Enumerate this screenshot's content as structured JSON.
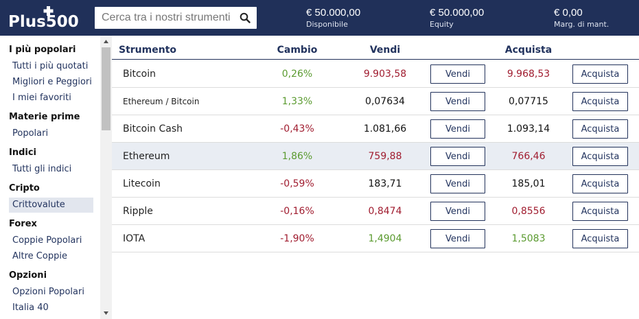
{
  "header": {
    "logo_text": "Plus500",
    "search_placeholder": "Cerca tra i nostri strumenti",
    "stats": [
      {
        "value": "€ 50.000,00",
        "label": "Disponibile"
      },
      {
        "value": "€ 50.000,00",
        "label": "Equity"
      },
      {
        "value": "€ 0,00",
        "label": "Marg. di mant."
      }
    ],
    "brand_color": "#203059"
  },
  "sidebar": {
    "sections": [
      {
        "title": "I più popolari",
        "items": [
          "Tutti i più quotati",
          "Migliori e Peggiori",
          "I miei favoriti"
        ]
      },
      {
        "title": "Materie prime",
        "items": [
          "Popolari"
        ]
      },
      {
        "title": "Indici",
        "items": [
          "Tutti gli indici"
        ]
      },
      {
        "title": "Cripto",
        "items": [
          "Crittovalute"
        ]
      },
      {
        "title": "Forex",
        "items": [
          "Coppie Popolari",
          "Altre Coppie"
        ]
      },
      {
        "title": "Opzioni",
        "items": [
          "Opzioni Popolari",
          "Italia 40"
        ]
      }
    ],
    "active_item": "Crittovalute"
  },
  "table": {
    "headers": {
      "instrument": "Strumento",
      "change": "Cambio",
      "sell": "Vendi",
      "buy": "Acquista"
    },
    "sell_button_label": "Vendi",
    "buy_button_label": "Acquista",
    "rows": [
      {
        "name": "Bitcoin",
        "change": "0,26%",
        "sell": "9.903,58",
        "buy": "9.968,53",
        "change_dir": "pos",
        "sell_dir": "neg",
        "buy_dir": "neg"
      },
      {
        "name": "Ethereum / Bitcoin",
        "change": "1,33%",
        "sell": "0,07634",
        "buy": "0,07715",
        "change_dir": "pos",
        "sell_dir": "neu",
        "buy_dir": "neu"
      },
      {
        "name": "Bitcoin Cash",
        "change": "-0,43%",
        "sell": "1.081,66",
        "buy": "1.093,14",
        "change_dir": "neg",
        "sell_dir": "neu",
        "buy_dir": "neu"
      },
      {
        "name": "Ethereum",
        "change": "1,86%",
        "sell": "759,88",
        "buy": "766,46",
        "change_dir": "pos",
        "sell_dir": "neg",
        "buy_dir": "neg"
      },
      {
        "name": "Litecoin",
        "change": "-0,59%",
        "sell": "183,71",
        "buy": "185,01",
        "change_dir": "neg",
        "sell_dir": "neu",
        "buy_dir": "neu"
      },
      {
        "name": "Ripple",
        "change": "-0,16%",
        "sell": "0,8474",
        "buy": "0,8556",
        "change_dir": "neg",
        "sell_dir": "neg",
        "buy_dir": "neg"
      },
      {
        "name": "IOTA",
        "change": "-1,90%",
        "sell": "1,4904",
        "buy": "1,5083",
        "change_dir": "neg",
        "sell_dir": "pos",
        "buy_dir": "pos"
      }
    ],
    "colors": {
      "positive": "#5a9a2f",
      "negative": "#a01c2f"
    }
  }
}
